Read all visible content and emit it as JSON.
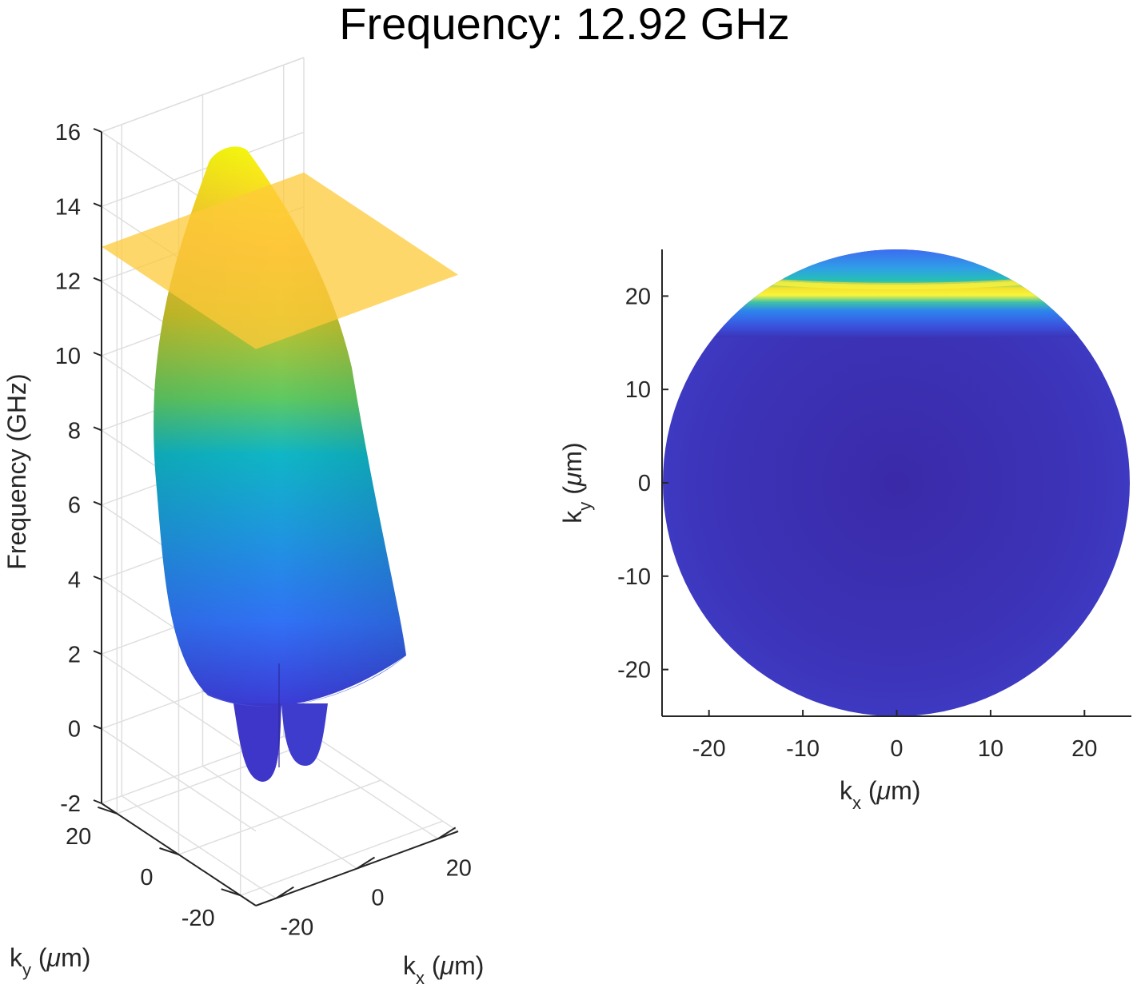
{
  "title": "Frequency: 12.92 GHz",
  "chart_data": [
    {
      "type": "surface",
      "name_hint": "",
      "xlabel_main": "k",
      "xlabel_sub": "x",
      "xlabel_unit_pre": " (",
      "xlabel_unit_mu": "μ",
      "xlabel_unit_post": "m)",
      "ylabel_main": "k",
      "ylabel_sub": "y",
      "ylabel_unit_pre": " (",
      "ylabel_unit_mu": "μ",
      "ylabel_unit_post": "m)",
      "zlabel": "Frequency (GHz)",
      "xlim": [
        -25,
        25
      ],
      "ylim": [
        -25,
        25
      ],
      "zlim": [
        -2,
        16
      ],
      "x_ticks": [
        "-20",
        "0",
        "20"
      ],
      "y_ticks": [
        "20",
        "0",
        "-20"
      ],
      "z_ticks": [
        "16",
        "14",
        "12",
        "10",
        "8",
        "6",
        "4",
        "2",
        "0",
        "-2"
      ],
      "z_tick_values": [
        16,
        14,
        12,
        10,
        8,
        6,
        4,
        2,
        0,
        -2
      ],
      "surface_max": 15.6,
      "surface_min": -1.5,
      "slice_plane_z": 12.92,
      "slice_plane_color": "#fdc93a",
      "colormap": "parula",
      "grid": true
    },
    {
      "type": "heatmap",
      "xlabel_main": "k",
      "xlabel_sub": "x",
      "xlabel_unit_pre": " (",
      "xlabel_unit_mu": "μ",
      "xlabel_unit_post": "m)",
      "ylabel_main": "k",
      "ylabel_sub": "y",
      "ylabel_unit_pre": " (",
      "ylabel_unit_mu": "μ",
      "ylabel_unit_post": "m)",
      "xlim": [
        -25,
        25
      ],
      "ylim": [
        -25,
        25
      ],
      "x_ticks": [
        "-20",
        "-10",
        "0",
        "10",
        "20"
      ],
      "x_tick_values": [
        -20,
        -10,
        0,
        10,
        20
      ],
      "y_ticks": [
        "20",
        "10",
        "0",
        "-10",
        "-20"
      ],
      "y_tick_values": [
        20,
        10,
        0,
        -10,
        -20
      ],
      "disk_radius": 25,
      "ridge_ky": 21,
      "colormap": "parula",
      "background_color": "#3c2fb4",
      "ridge_color": "#f9e324"
    }
  ]
}
